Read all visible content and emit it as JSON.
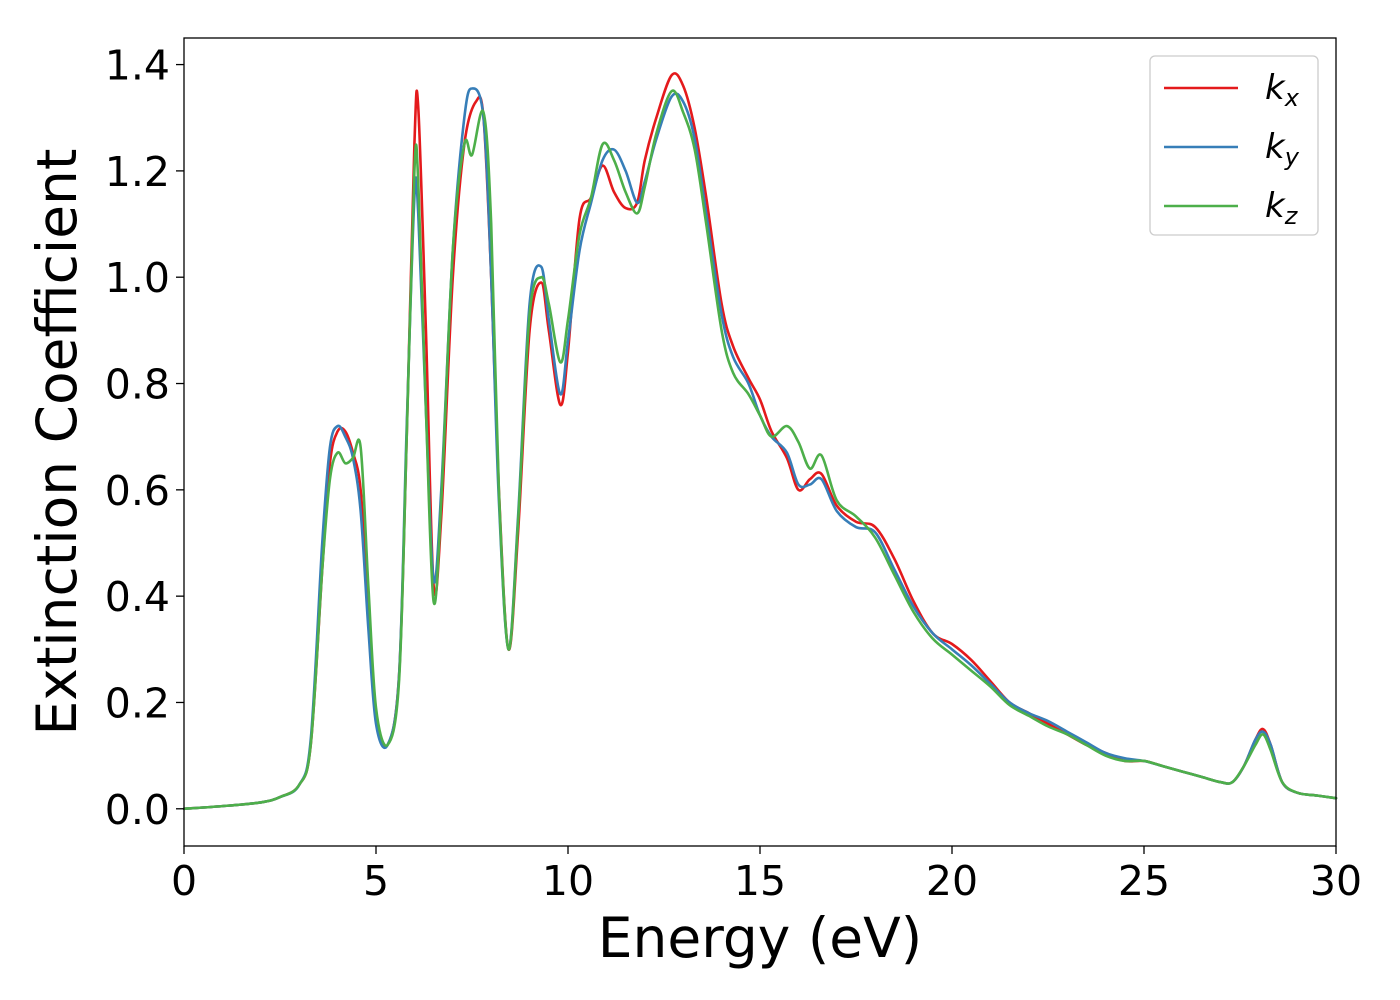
{
  "chart_data": {
    "type": "line",
    "xlabel": "Energy (eV)",
    "ylabel": "Extinction Coefficient",
    "xlim": [
      0,
      30
    ],
    "ylim": [
      -0.07,
      1.45
    ],
    "xticks": [
      0,
      5,
      10,
      15,
      20,
      25,
      30
    ],
    "yticks": [
      0.0,
      0.2,
      0.4,
      0.6,
      0.8,
      1.0,
      1.2,
      1.4
    ],
    "grid": false,
    "legend_position": "top-right",
    "series": [
      {
        "name": "k",
        "subscript": "x",
        "color": "#e41a1c",
        "x": [
          0,
          1,
          2,
          2.5,
          3,
          3.3,
          3.6,
          3.8,
          4.0,
          4.2,
          4.4,
          4.6,
          4.8,
          5.0,
          5.3,
          5.6,
          5.8,
          6.0,
          6.1,
          6.3,
          6.5,
          6.7,
          7.0,
          7.3,
          7.6,
          7.8,
          8.0,
          8.2,
          8.45,
          8.7,
          9.0,
          9.3,
          9.5,
          9.8,
          10.0,
          10.3,
          10.6,
          10.9,
          11.2,
          11.5,
          11.8,
          12.0,
          12.3,
          12.7,
          13.0,
          13.3,
          13.6,
          14.0,
          14.3,
          14.7,
          15.0,
          15.3,
          15.7,
          16.0,
          16.3,
          16.6,
          17.0,
          17.5,
          18.0,
          18.5,
          19.0,
          19.5,
          20.0,
          20.5,
          21.0,
          21.5,
          22.0,
          22.5,
          23.0,
          23.5,
          24.0,
          24.5,
          25.0,
          25.5,
          26.0,
          26.5,
          27.0,
          27.3,
          27.6,
          27.9,
          28.1,
          28.3,
          28.6,
          29.0,
          29.5,
          30.0
        ],
        "values": [
          0,
          0.005,
          0.012,
          0.022,
          0.045,
          0.12,
          0.45,
          0.65,
          0.71,
          0.71,
          0.67,
          0.6,
          0.38,
          0.18,
          0.12,
          0.25,
          0.7,
          1.25,
          1.32,
          0.9,
          0.42,
          0.55,
          1.0,
          1.25,
          1.33,
          1.3,
          1.0,
          0.6,
          0.3,
          0.52,
          0.9,
          0.99,
          0.9,
          0.76,
          0.86,
          1.11,
          1.15,
          1.21,
          1.16,
          1.13,
          1.14,
          1.22,
          1.3,
          1.38,
          1.36,
          1.28,
          1.15,
          0.95,
          0.87,
          0.81,
          0.77,
          0.71,
          0.66,
          0.6,
          0.62,
          0.63,
          0.57,
          0.54,
          0.53,
          0.47,
          0.39,
          0.33,
          0.31,
          0.28,
          0.24,
          0.2,
          0.18,
          0.16,
          0.14,
          0.12,
          0.105,
          0.09,
          0.09,
          0.08,
          0.07,
          0.06,
          0.05,
          0.05,
          0.08,
          0.13,
          0.15,
          0.12,
          0.05,
          0.03,
          0.025,
          0.02
        ]
      },
      {
        "name": "k",
        "subscript": "y",
        "color": "#377eb8",
        "x": [
          0,
          1,
          2,
          2.5,
          3,
          3.3,
          3.6,
          3.8,
          4.0,
          4.2,
          4.4,
          4.6,
          4.8,
          5.0,
          5.3,
          5.6,
          5.8,
          6.0,
          6.1,
          6.3,
          6.5,
          6.7,
          7.0,
          7.3,
          7.5,
          7.8,
          8.0,
          8.2,
          8.45,
          8.7,
          9.0,
          9.3,
          9.5,
          9.8,
          10.0,
          10.3,
          10.6,
          10.9,
          11.2,
          11.5,
          11.8,
          12.0,
          12.3,
          12.7,
          13.0,
          13.3,
          13.6,
          14.0,
          14.3,
          14.7,
          15.0,
          15.3,
          15.7,
          16.0,
          16.3,
          16.6,
          17.0,
          17.5,
          18.0,
          18.5,
          19.0,
          19.5,
          20.0,
          20.5,
          21.0,
          21.5,
          22.0,
          22.5,
          23.0,
          23.5,
          24.0,
          24.5,
          25.0,
          25.5,
          26.0,
          26.5,
          27.0,
          27.3,
          27.6,
          27.9,
          28.1,
          28.3,
          28.6,
          29.0,
          29.5,
          30.0
        ],
        "values": [
          0,
          0.005,
          0.012,
          0.022,
          0.045,
          0.13,
          0.5,
          0.68,
          0.72,
          0.7,
          0.66,
          0.56,
          0.34,
          0.16,
          0.12,
          0.25,
          0.72,
          1.15,
          1.12,
          0.75,
          0.43,
          0.6,
          1.05,
          1.3,
          1.355,
          1.3,
          1.0,
          0.58,
          0.3,
          0.55,
          0.95,
          1.02,
          0.92,
          0.78,
          0.88,
          1.05,
          1.14,
          1.22,
          1.24,
          1.2,
          1.14,
          1.18,
          1.26,
          1.34,
          1.33,
          1.26,
          1.12,
          0.93,
          0.85,
          0.8,
          0.74,
          0.7,
          0.67,
          0.61,
          0.61,
          0.62,
          0.56,
          0.53,
          0.52,
          0.45,
          0.38,
          0.33,
          0.3,
          0.27,
          0.235,
          0.2,
          0.18,
          0.165,
          0.145,
          0.125,
          0.105,
          0.095,
          0.09,
          0.08,
          0.07,
          0.06,
          0.05,
          0.05,
          0.08,
          0.13,
          0.145,
          0.12,
          0.05,
          0.03,
          0.025,
          0.02
        ]
      },
      {
        "name": "k",
        "subscript": "z",
        "color": "#4daf4a",
        "x": [
          0,
          1,
          2,
          2.5,
          3,
          3.3,
          3.6,
          3.8,
          4.0,
          4.2,
          4.4,
          4.6,
          4.8,
          5.0,
          5.3,
          5.6,
          5.8,
          6.0,
          6.1,
          6.3,
          6.5,
          6.7,
          7.0,
          7.3,
          7.5,
          7.8,
          8.0,
          8.2,
          8.45,
          8.7,
          9.0,
          9.3,
          9.5,
          9.8,
          10.0,
          10.3,
          10.6,
          10.9,
          11.2,
          11.5,
          11.8,
          12.0,
          12.3,
          12.7,
          13.0,
          13.3,
          13.6,
          14.0,
          14.3,
          14.7,
          15.0,
          15.3,
          15.7,
          16.0,
          16.3,
          16.6,
          17.0,
          17.5,
          18.0,
          18.5,
          19.0,
          19.5,
          20.0,
          20.5,
          21.0,
          21.5,
          22.0,
          22.5,
          23.0,
          23.5,
          24.0,
          24.5,
          25.0,
          25.5,
          26.0,
          26.5,
          27.0,
          27.3,
          27.6,
          27.9,
          28.1,
          28.3,
          28.6,
          29.0,
          29.5,
          30.0
        ],
        "values": [
          0,
          0.005,
          0.012,
          0.022,
          0.045,
          0.12,
          0.45,
          0.62,
          0.67,
          0.65,
          0.66,
          0.68,
          0.42,
          0.19,
          0.12,
          0.24,
          0.7,
          1.2,
          1.18,
          0.75,
          0.39,
          0.58,
          1.05,
          1.25,
          1.23,
          1.31,
          1.1,
          0.6,
          0.3,
          0.54,
          0.93,
          1.0,
          0.95,
          0.84,
          0.92,
          1.08,
          1.15,
          1.25,
          1.22,
          1.16,
          1.12,
          1.17,
          1.27,
          1.35,
          1.31,
          1.24,
          1.1,
          0.9,
          0.82,
          0.78,
          0.74,
          0.7,
          0.72,
          0.69,
          0.64,
          0.665,
          0.58,
          0.55,
          0.51,
          0.44,
          0.37,
          0.32,
          0.29,
          0.26,
          0.23,
          0.195,
          0.175,
          0.155,
          0.14,
          0.12,
          0.1,
          0.09,
          0.09,
          0.08,
          0.07,
          0.06,
          0.05,
          0.05,
          0.08,
          0.12,
          0.14,
          0.11,
          0.05,
          0.03,
          0.025,
          0.02
        ]
      }
    ]
  }
}
